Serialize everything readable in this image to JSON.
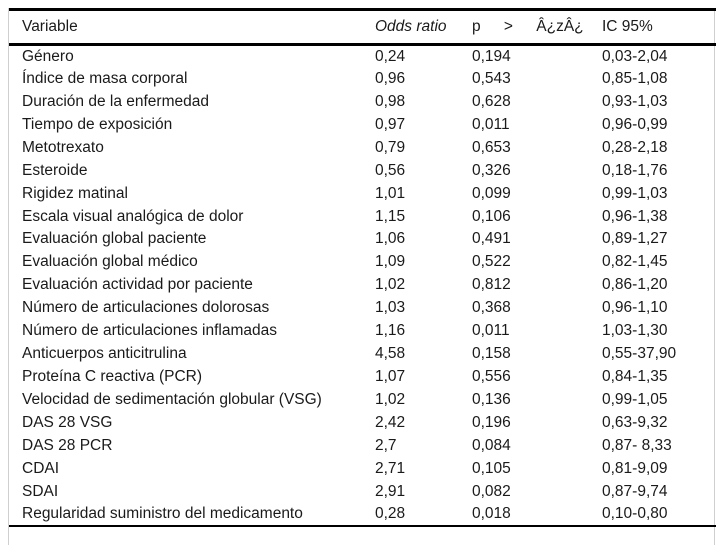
{
  "colors": {
    "background": "#ffffff",
    "text": "#1a1a1a",
    "rule": "#000000",
    "frame_border": "#cfcfcf"
  },
  "table": {
    "columns": [
      {
        "key": "variable",
        "label": "Variable"
      },
      {
        "key": "odds_ratio",
        "label": "Odds ratio"
      },
      {
        "key": "p_value",
        "label": "p > Â¿zÂ¿"
      },
      {
        "key": "ic95",
        "label": "IC 95%"
      }
    ],
    "rows": [
      {
        "variable": "Género",
        "odds_ratio": "0,24",
        "p_value": "0,194",
        "ic95": "0,03-2,04"
      },
      {
        "variable": "Índice de masa corporal",
        "odds_ratio": "0,96",
        "p_value": "0,543",
        "ic95": "0,85-1,08"
      },
      {
        "variable": "Duración de la enfermedad",
        "odds_ratio": "0,98",
        "p_value": "0,628",
        "ic95": "0,93-1,03"
      },
      {
        "variable": "Tiempo de exposición",
        "odds_ratio": "0,97",
        "p_value": "0,011",
        "ic95": "0,96-0,99"
      },
      {
        "variable": "Metotrexato",
        "odds_ratio": "0,79",
        "p_value": "0,653",
        "ic95": "0,28-2,18"
      },
      {
        "variable": "Esteroide",
        "odds_ratio": "0,56",
        "p_value": "0,326",
        "ic95": "0,18-1,76"
      },
      {
        "variable": "Rigidez matinal",
        "odds_ratio": "1,01",
        "p_value": "0,099",
        "ic95": "0,99-1,03"
      },
      {
        "variable": "Escala visual analógica de dolor",
        "odds_ratio": "1,15",
        "p_value": "0,106",
        "ic95": "0,96-1,38"
      },
      {
        "variable": "Evaluación global paciente",
        "odds_ratio": "1,06",
        "p_value": "0,491",
        "ic95": "0,89-1,27"
      },
      {
        "variable": "Evaluación global médico",
        "odds_ratio": "1,09",
        "p_value": "0,522",
        "ic95": "0,82-1,45"
      },
      {
        "variable": "Evaluación actividad por paciente",
        "odds_ratio": "1,02",
        "p_value": "0,812",
        "ic95": "0,86-1,20"
      },
      {
        "variable": "Número de articulaciones dolorosas",
        "odds_ratio": "1,03",
        "p_value": "0,368",
        "ic95": "0,96-1,10"
      },
      {
        "variable": "Número de articulaciones inflamadas",
        "odds_ratio": "1,16",
        "p_value": "0,011",
        "ic95": "1,03-1,30"
      },
      {
        "variable": "Anticuerpos anticitrulina",
        "odds_ratio": "4,58",
        "p_value": "0,158",
        "ic95": "0,55-37,90"
      },
      {
        "variable": "Proteína C reactiva (PCR)",
        "odds_ratio": "1,07",
        "p_value": "0,556",
        "ic95": "0,84-1,35"
      },
      {
        "variable": "Velocidad de sedimentación globular (VSG)",
        "odds_ratio": "1,02",
        "p_value": "0,136",
        "ic95": "0,99-1,05"
      },
      {
        "variable": "DAS 28 VSG",
        "odds_ratio": "2,42",
        "p_value": "0,196",
        "ic95": "0,63-9,32"
      },
      {
        "variable": "DAS 28 PCR",
        "odds_ratio": "2,7",
        "p_value": "0,084",
        "ic95": "0,87- 8,33"
      },
      {
        "variable": "CDAI",
        "odds_ratio": "2,71",
        "p_value": "0,105",
        "ic95": "0,81-9,09"
      },
      {
        "variable": "SDAI",
        "odds_ratio": "2,91",
        "p_value": "0,082",
        "ic95": "0,87-9,74"
      },
      {
        "variable": "Regularidad suministro del medicamento",
        "odds_ratio": "0,28",
        "p_value": "0,018",
        "ic95": "0,10-0,80"
      }
    ]
  }
}
